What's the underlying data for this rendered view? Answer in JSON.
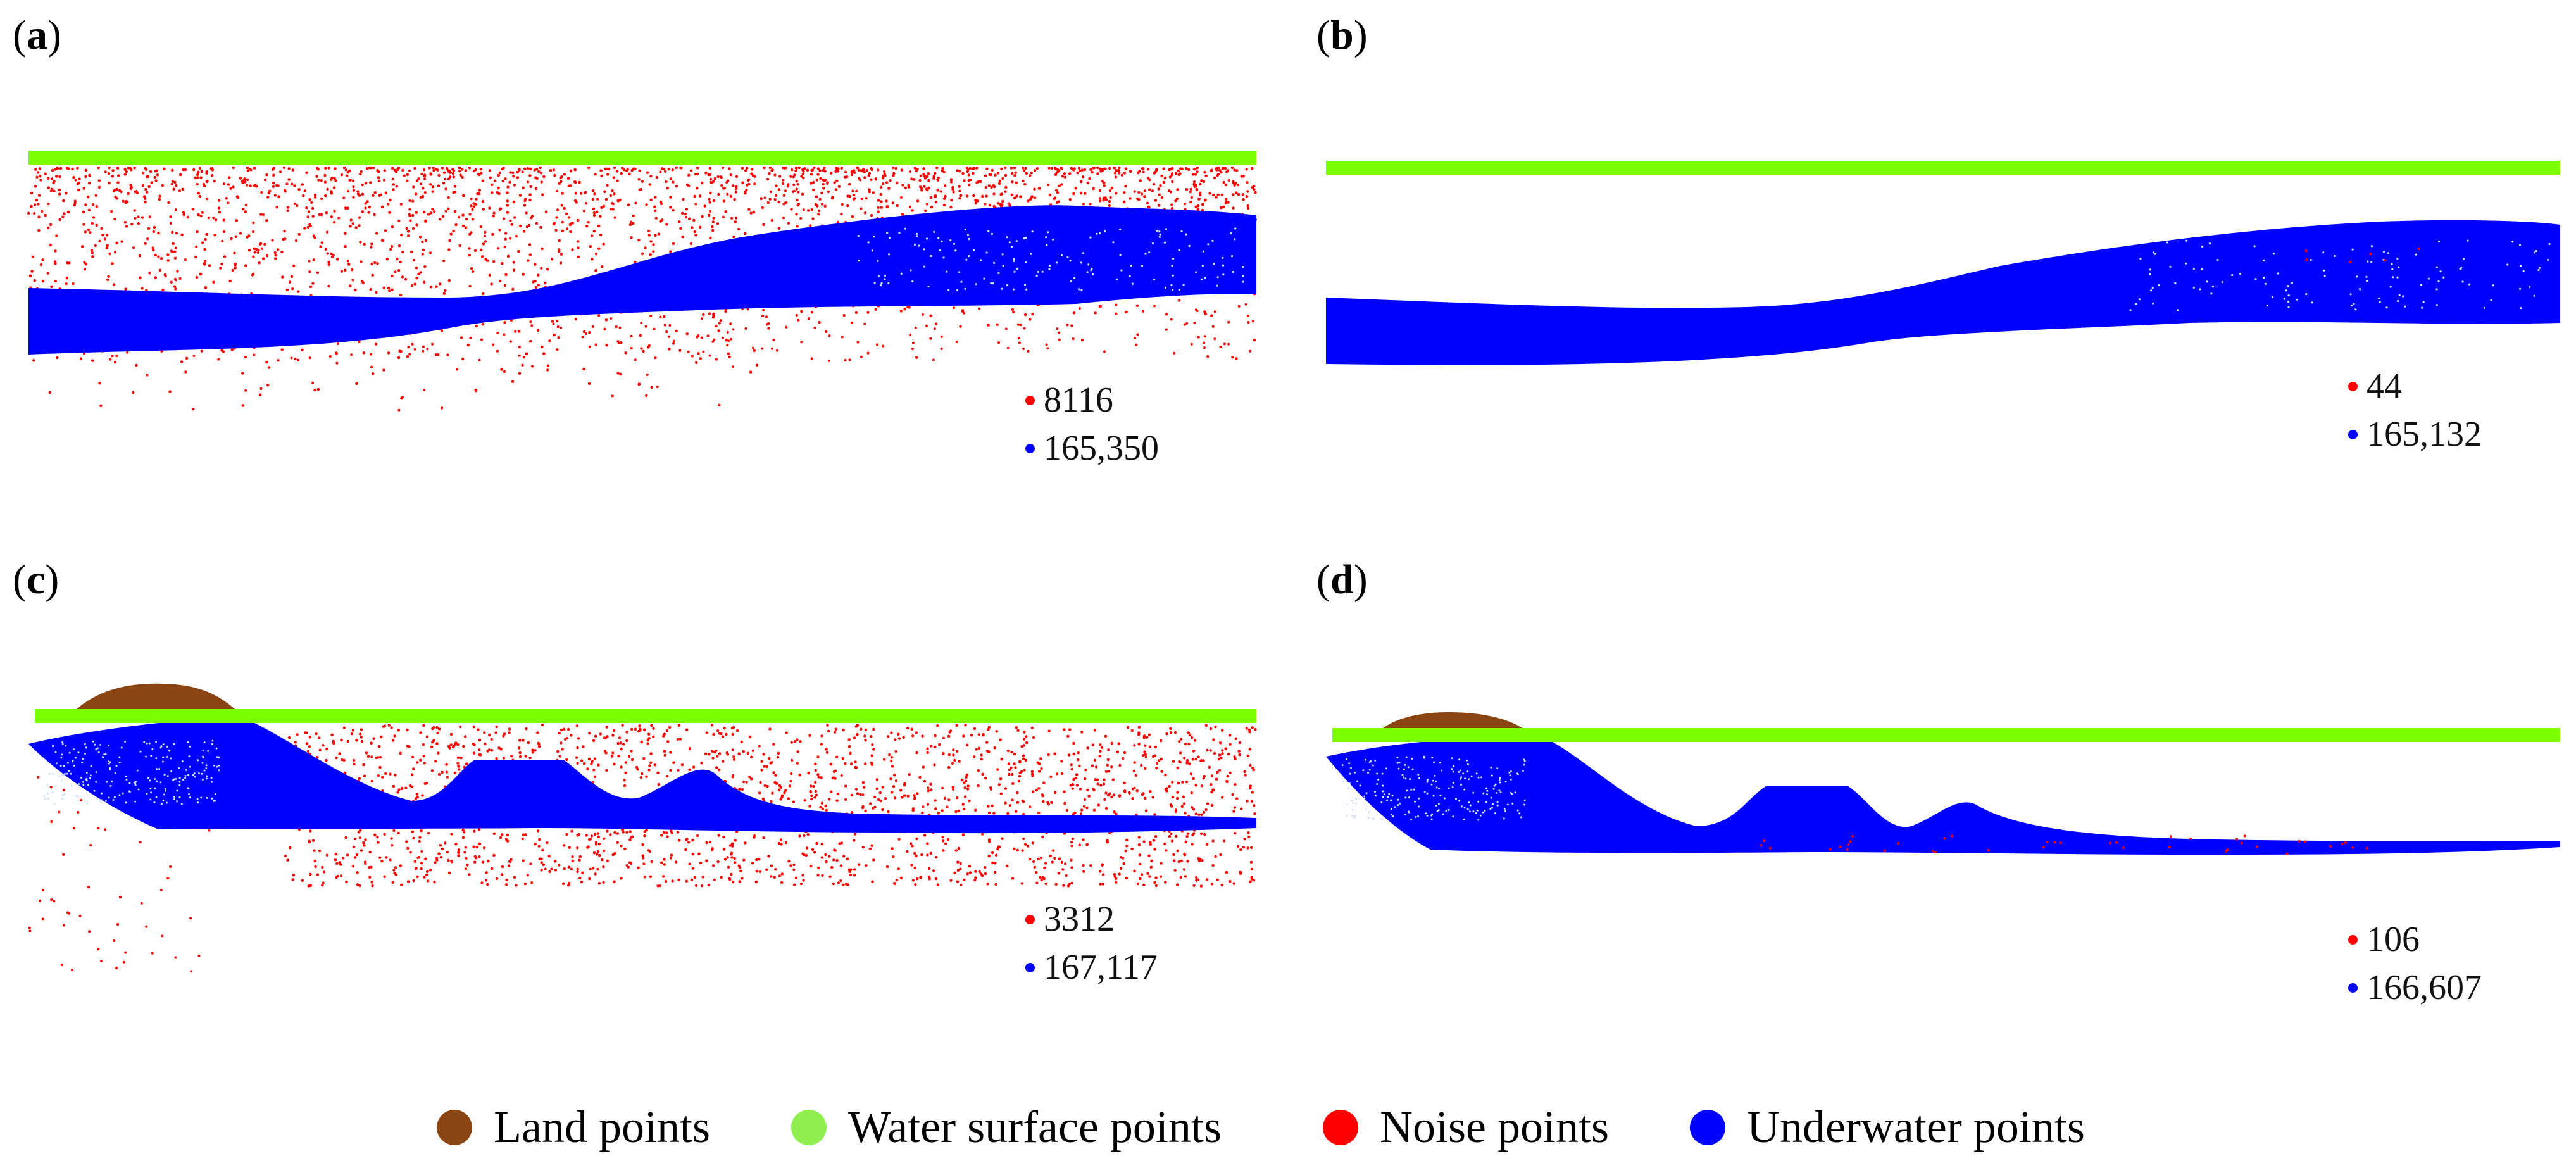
{
  "colors": {
    "land": "#8B4513",
    "water_surface": "#7CFC00",
    "noise": "#FF0000",
    "underwater": "#0000FF"
  },
  "panels": [
    {
      "id": "a",
      "letter": "a",
      "noise_count": "8116",
      "underwater_count": "165,350"
    },
    {
      "id": "b",
      "letter": "b",
      "noise_count": "44",
      "underwater_count": "165,132"
    },
    {
      "id": "c",
      "letter": "c",
      "noise_count": "3312",
      "underwater_count": "167,117"
    },
    {
      "id": "d",
      "letter": "d",
      "noise_count": "106",
      "underwater_count": "166,607"
    }
  ],
  "legend": [
    {
      "label": "Land points",
      "color": "#8B4513"
    },
    {
      "label": "Water surface points",
      "color": "#7CFC00"
    },
    {
      "label": "Noise points",
      "color": "#FF0000"
    },
    {
      "label": "Underwater points",
      "color": "#0000FF"
    }
  ]
}
